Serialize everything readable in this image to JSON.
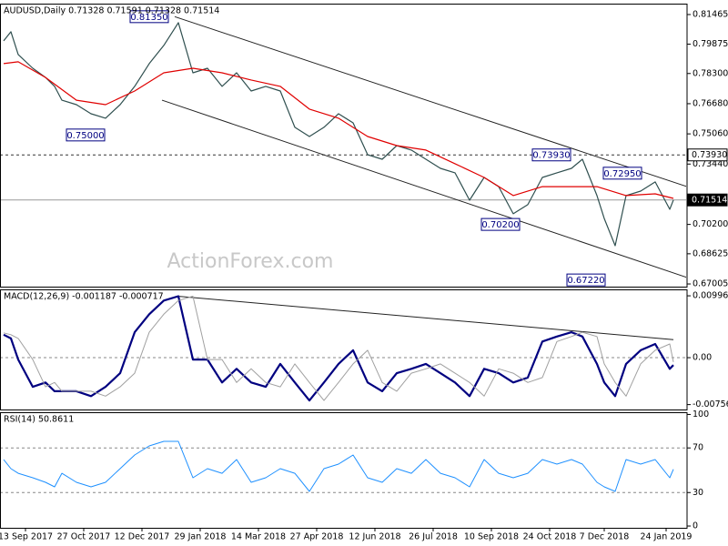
{
  "chart_data": [
    {
      "type": "line",
      "title": "AUDUSD,Daily  0.71328 0.71591 0.71328 0.71514",
      "watermark": "ActionForex.com",
      "xlim": [
        -2,
        375.5
      ],
      "ylim": [
        0.6686,
        0.8205
      ],
      "yticks": [
        0.81465,
        0.79875,
        {
          "value": 0.783,
          "label": "0.78300"
        },
        {
          "value": 0.7668,
          "label": "0.76680"
        },
        {
          "value": 0.7506,
          "label": "0.75060"
        },
        {
          "value": 0.7344,
          "label": "0.73440"
        },
        {
          "value": 0.702,
          "label": "0.70200"
        },
        0.68625,
        0.67005
      ],
      "series": [
        {
          "color": "#2f4f4f",
          "x": [
            0,
            4,
            8,
            16,
            23,
            28,
            32,
            40,
            48,
            56,
            64,
            72,
            80,
            88,
            96,
            104,
            112,
            120,
            128,
            136,
            144,
            152,
            160,
            168,
            176,
            184,
            192,
            200,
            208,
            216,
            224,
            232,
            240,
            248,
            256,
            264,
            272,
            280,
            288,
            296,
            304,
            312,
            318,
            326,
            330,
            336,
            342,
            350,
            358,
            366,
            368
          ],
          "values": [
            0.8005,
            0.8054,
            0.7932,
            0.7858,
            0.7809,
            0.7761,
            0.7687,
            0.7663,
            0.7614,
            0.759,
            0.7663,
            0.7761,
            0.7883,
            0.7981,
            0.8103,
            0.7834,
            0.7858,
            0.7761,
            0.7834,
            0.7736,
            0.7761,
            0.7736,
            0.7541,
            0.7492,
            0.7541,
            0.7614,
            0.7565,
            0.7394,
            0.737,
            0.7443,
            0.7419,
            0.737,
            0.7321,
            0.7297,
            0.715,
            0.7272,
            0.7223,
            0.7077,
            0.7126,
            0.7272,
            0.7297,
            0.7321,
            0.737,
            0.7175,
            0.7052,
            0.6906,
            0.7175,
            0.7199,
            0.7248,
            0.7101,
            0.7151
          ]
        },
        {
          "color": "#e00000",
          "x": [
            0,
            8,
            23,
            40,
            56,
            72,
            88,
            104,
            120,
            136,
            152,
            168,
            184,
            200,
            216,
            232,
            248,
            264,
            280,
            296,
            312,
            326,
            342,
            358,
            368
          ],
          "values": [
            0.7883,
            0.7893,
            0.7809,
            0.7687,
            0.7663,
            0.7736,
            0.7834,
            0.7858,
            0.7834,
            0.7795,
            0.7761,
            0.7639,
            0.759,
            0.7492,
            0.7443,
            0.7419,
            0.7346,
            0.7272,
            0.7175,
            0.7223,
            0.7223,
            0.7223,
            0.7175,
            0.7184,
            0.716
          ]
        }
      ],
      "trendlines": [
        {
          "x": [
            94,
            375.5
          ],
          "values": [
            0.8135,
            0.7223
          ]
        },
        {
          "x": [
            87,
            375.5
          ],
          "values": [
            0.7687,
            0.6735
          ]
        }
      ],
      "annotations": [
        {
          "x": 80,
          "value": 0.8135,
          "label": "0.81350"
        },
        {
          "x": 45,
          "value": 0.75,
          "label": "0.75000"
        },
        {
          "x": 273,
          "value": 0.702,
          "label": "0.70200"
        },
        {
          "x": 320,
          "value": 0.6722,
          "label": "0.67220"
        },
        {
          "x": 301,
          "value": 0.7393,
          "label": "0.73930"
        },
        {
          "x": 340,
          "value": 0.7295,
          "label": "0.72950"
        }
      ],
      "price_markers": [
        {
          "value": 0.7393,
          "label": "0.73930",
          "style": "dashed"
        },
        {
          "value": 0.71514,
          "label": "0.71514",
          "style": "solid"
        }
      ]
    },
    {
      "type": "line",
      "title": "MACD(12,26,9) -0.001187 -0.000717",
      "xlim": [
        -2,
        375.5
      ],
      "ylim": [
        -0.00835,
        0.011
      ],
      "yticks": [
        0.009964,
        {
          "value": 0,
          "label": "0.00"
        },
        -0.00756
      ],
      "levels": [
        0
      ],
      "series": [
        {
          "color": "#000080",
          "width": 2.2,
          "x": [
            0,
            4,
            8,
            16,
            23,
            28,
            32,
            40,
            48,
            56,
            64,
            72,
            80,
            88,
            96,
            104,
            112,
            120,
            128,
            136,
            144,
            152,
            160,
            168,
            176,
            184,
            192,
            200,
            208,
            216,
            224,
            232,
            240,
            248,
            256,
            264,
            272,
            280,
            288,
            296,
            304,
            312,
            318,
            326,
            330,
            336,
            342,
            350,
            358,
            366,
            368
          ],
          "values": [
            0.0037,
            0.0031,
            -0.0003,
            -0.0047,
            -0.004,
            -0.0054,
            -0.0054,
            -0.0054,
            -0.0062,
            -0.0047,
            -0.0025,
            0.0041,
            0.007,
            0.0092,
            0.0099,
            -0.0003,
            -0.0003,
            -0.004,
            -0.0018,
            -0.004,
            -0.0047,
            -0.001,
            -0.004,
            -0.0069,
            -0.004,
            -0.001,
            0.0012,
            -0.004,
            -0.0054,
            -0.0025,
            -0.0018,
            -0.001,
            -0.0025,
            -0.004,
            -0.0062,
            -0.0018,
            -0.0025,
            -0.004,
            -0.0032,
            0.0026,
            0.0034,
            0.0041,
            0.0034,
            -0.001,
            -0.004,
            -0.0062,
            -0.001,
            0.0012,
            0.0022,
            -0.0018,
            -0.0012
          ]
        },
        {
          "color": "#a0a0a0",
          "width": 1,
          "x": [
            0,
            4,
            8,
            16,
            23,
            28,
            32,
            40,
            48,
            56,
            64,
            72,
            80,
            88,
            96,
            104,
            112,
            120,
            128,
            136,
            144,
            152,
            160,
            168,
            176,
            184,
            192,
            200,
            208,
            216,
            224,
            232,
            240,
            248,
            256,
            264,
            272,
            280,
            288,
            296,
            304,
            312,
            318,
            326,
            330,
            336,
            342,
            350,
            358,
            366,
            368
          ],
          "values": [
            0.004,
            0.0037,
            0.0031,
            -0.0003,
            -0.0047,
            -0.004,
            -0.0054,
            -0.0054,
            -0.0054,
            -0.0062,
            -0.0047,
            -0.0025,
            0.0041,
            0.007,
            0.0092,
            0.0099,
            -0.0003,
            -0.0003,
            -0.004,
            -0.0018,
            -0.004,
            -0.0047,
            -0.001,
            -0.004,
            -0.0069,
            -0.004,
            -0.001,
            0.0012,
            -0.004,
            -0.0054,
            -0.0025,
            -0.0018,
            -0.001,
            -0.0025,
            -0.004,
            -0.0062,
            -0.0018,
            -0.0025,
            -0.004,
            -0.0032,
            0.0026,
            0.0034,
            0.0041,
            0.0034,
            -0.001,
            -0.004,
            -0.0062,
            -0.001,
            0.0012,
            0.0022,
            -0.0007
          ]
        }
      ],
      "trendlines": [
        {
          "x": [
            95.5,
            368
          ],
          "values": [
            0.0099,
            0.0029
          ]
        }
      ]
    },
    {
      "type": "line",
      "title": "RSI(14) 50.8611",
      "xlim": [
        -2,
        375.5
      ],
      "ylim": [
        -1.6,
        102
      ],
      "yticks": [
        100,
        70,
        30,
        0
      ],
      "levels": [
        70,
        30
      ],
      "xticks": [
        {
          "value": 12,
          "label": "13 Sep 2017"
        },
        {
          "value": 44,
          "label": "27 Oct 2017"
        },
        {
          "value": 76,
          "label": "12 Dec 2017"
        },
        {
          "value": 108,
          "label": "29 Jan 2018"
        },
        {
          "value": 140,
          "label": "14 Mar 2018"
        },
        {
          "value": 172,
          "label": "27 Apr 2018"
        },
        {
          "value": 204,
          "label": "12 Jun 2018"
        },
        {
          "value": 236,
          "label": "26 Jul 2018"
        },
        {
          "value": 268,
          "label": "10 Sep 2018"
        },
        {
          "value": 300,
          "label": "24 Oct 2018"
        },
        {
          "value": 330,
          "label": "7 Dec 2018"
        },
        {
          "value": 364,
          "label": "24 Jan 2019"
        }
      ],
      "series": [
        {
          "color": "#1e90ff",
          "width": 1,
          "x": [
            0,
            4,
            8,
            16,
            23,
            28,
            32,
            40,
            48,
            56,
            64,
            72,
            80,
            88,
            96,
            104,
            112,
            120,
            128,
            136,
            144,
            152,
            160,
            168,
            176,
            184,
            192,
            200,
            208,
            216,
            224,
            232,
            240,
            248,
            256,
            264,
            272,
            280,
            288,
            296,
            304,
            312,
            318,
            326,
            330,
            336,
            342,
            350,
            358,
            366,
            368
          ],
          "values": [
            59.6,
            51.4,
            47.3,
            43.3,
            39.2,
            35.1,
            47.3,
            39.2,
            35.1,
            39.2,
            51.4,
            63.7,
            71.8,
            75.9,
            75.9,
            43.3,
            51.4,
            47.3,
            59.6,
            39.2,
            43.3,
            51.4,
            47.3,
            31.0,
            51.4,
            55.5,
            63.7,
            43.3,
            39.2,
            51.4,
            47.3,
            59.6,
            47.3,
            43.3,
            35.1,
            59.6,
            47.3,
            43.3,
            47.3,
            59.6,
            55.5,
            59.6,
            55.5,
            39.2,
            35.1,
            31.0,
            59.6,
            55.5,
            59.6,
            43.3,
            50.86
          ]
        }
      ]
    }
  ]
}
